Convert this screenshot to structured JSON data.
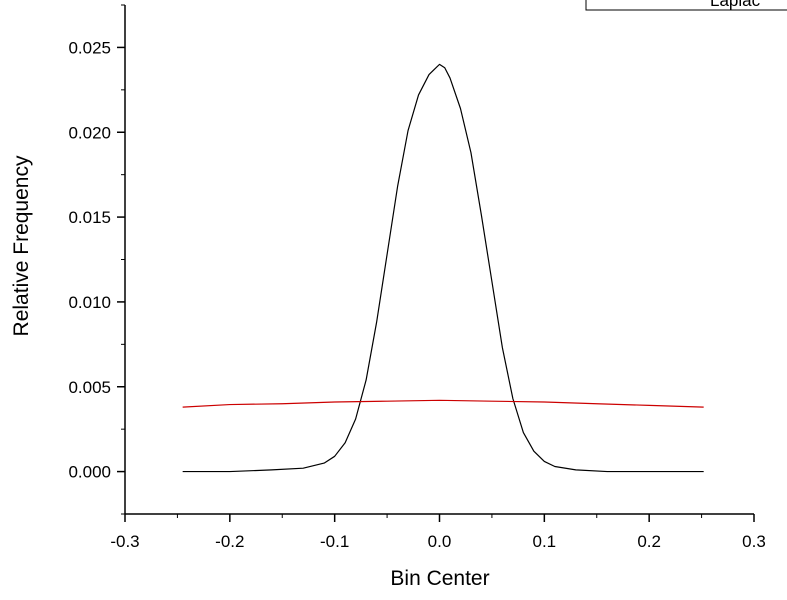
{
  "chart_data": {
    "type": "line",
    "title": "",
    "xlabel": "Bin Center",
    "ylabel": "Relative Frequency",
    "xlim": [
      -0.3,
      0.3
    ],
    "ylim": [
      -0.0025,
      0.0275
    ],
    "xticks": [
      -0.3,
      -0.2,
      -0.1,
      0.0,
      0.1,
      0.2,
      0.3
    ],
    "xtick_labels": [
      "-0.3",
      "-0.2",
      "-0.1",
      "0.0",
      "0.1",
      "0.2",
      "0.3"
    ],
    "yticks": [
      0.0,
      0.005,
      0.01,
      0.015,
      0.02,
      0.025
    ],
    "ytick_labels": [
      "0.000",
      "0.005",
      "0.010",
      "0.015",
      "0.020",
      "0.025"
    ],
    "grid": false,
    "legend": {
      "position": "top-right",
      "visible_text": "Laplac"
    },
    "series": [
      {
        "color": "#000000",
        "x": [
          -0.245,
          -0.2,
          -0.16,
          -0.13,
          -0.11,
          -0.1,
          -0.09,
          -0.08,
          -0.07,
          -0.06,
          -0.05,
          -0.04,
          -0.03,
          -0.02,
          -0.01,
          -0.005,
          0.0,
          0.005,
          0.01,
          0.02,
          0.03,
          0.04,
          0.05,
          0.06,
          0.07,
          0.08,
          0.09,
          0.1,
          0.11,
          0.13,
          0.16,
          0.2,
          0.252
        ],
        "y": [
          0.0,
          0.0,
          0.0001,
          0.0002,
          0.0005,
          0.0009,
          0.0017,
          0.0031,
          0.0054,
          0.0088,
          0.0128,
          0.0168,
          0.0201,
          0.0222,
          0.0234,
          0.0237,
          0.024,
          0.0238,
          0.0232,
          0.0214,
          0.0188,
          0.0151,
          0.0112,
          0.0073,
          0.0043,
          0.0023,
          0.0012,
          0.0006,
          0.0003,
          0.0001,
          0.0,
          0.0,
          0.0
        ]
      },
      {
        "name": "Laplac",
        "color": "#cc0000",
        "x": [
          -0.245,
          -0.2,
          -0.15,
          -0.1,
          -0.05,
          0.0,
          0.05,
          0.1,
          0.15,
          0.2,
          0.252
        ],
        "y": [
          0.0038,
          0.00395,
          0.004,
          0.0041,
          0.00415,
          0.0042,
          0.00415,
          0.0041,
          0.004,
          0.0039,
          0.0038
        ]
      }
    ]
  }
}
